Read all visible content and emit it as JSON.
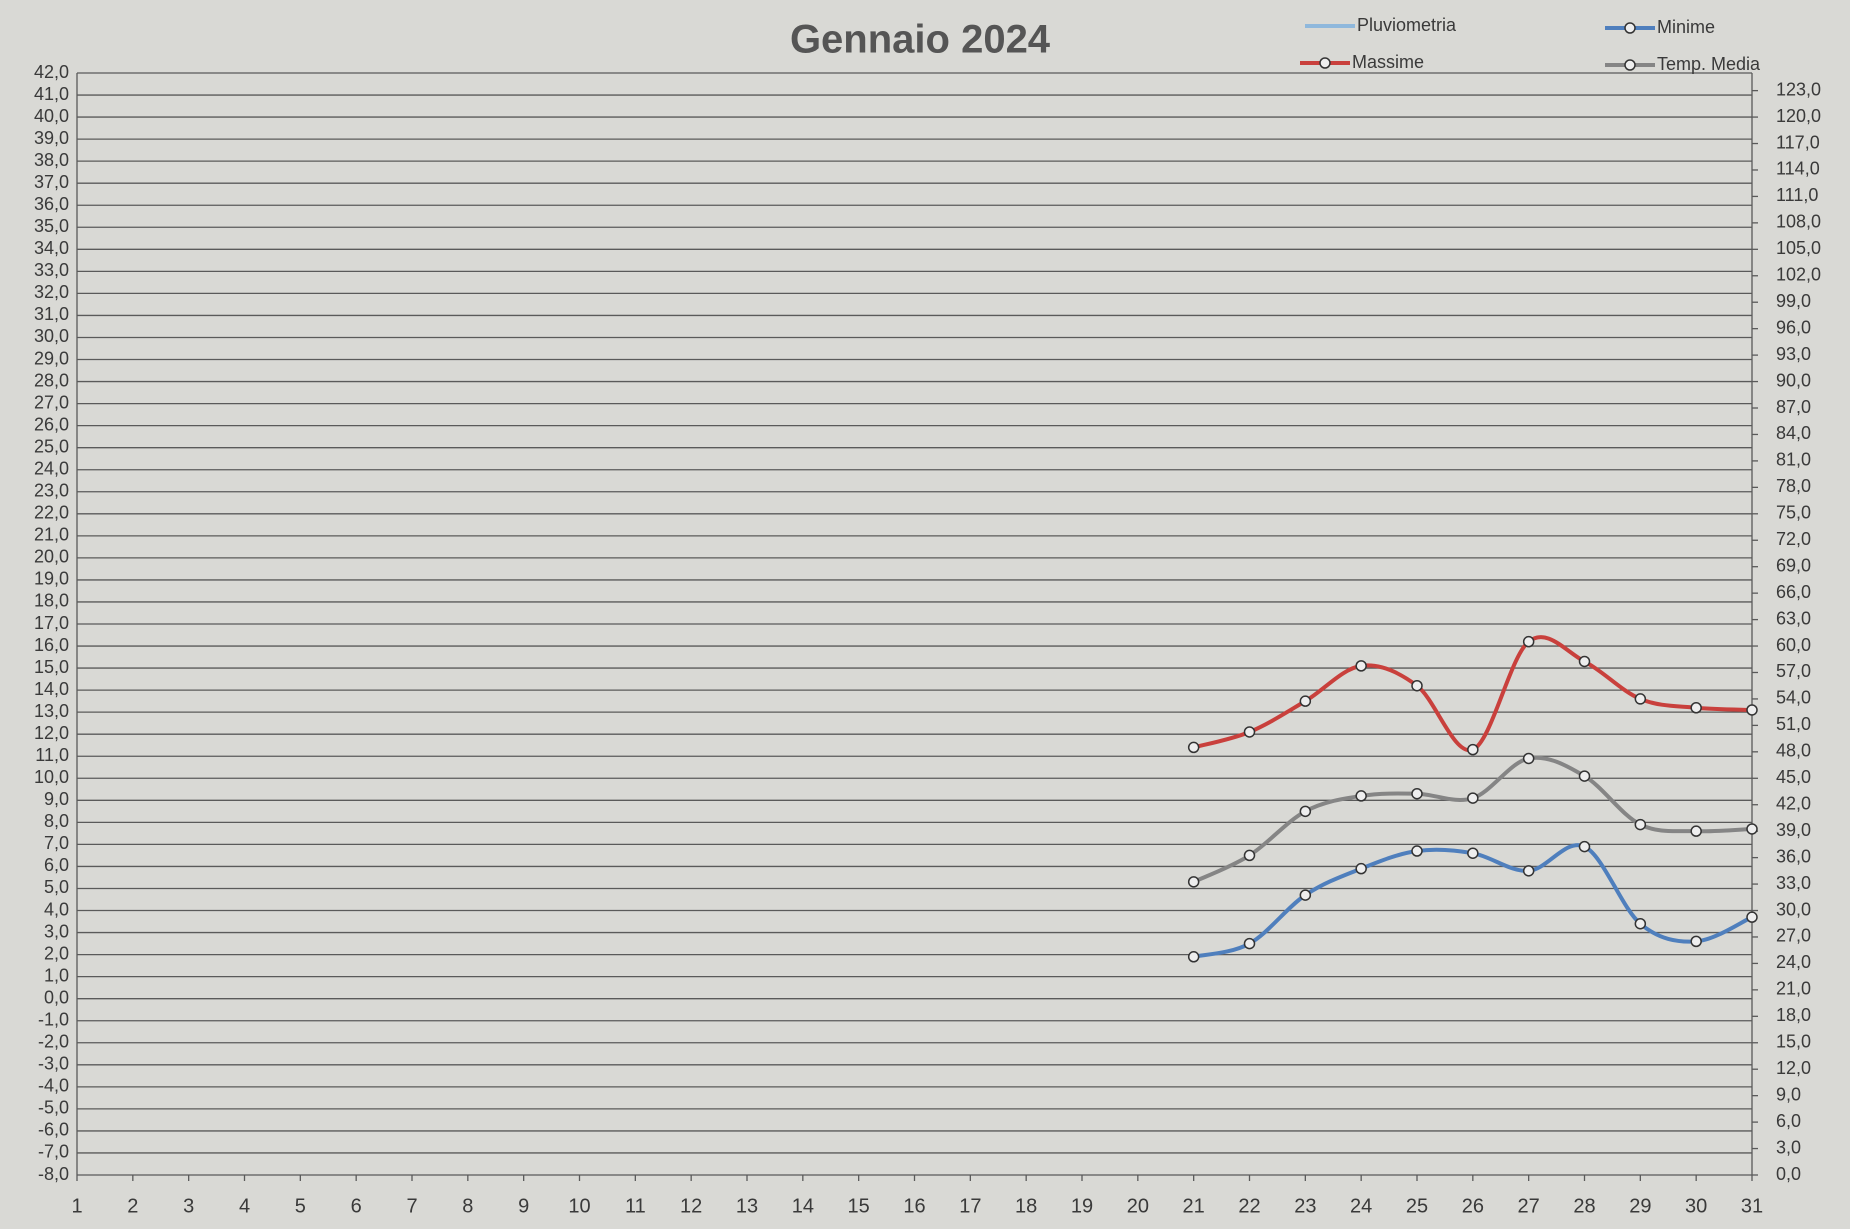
{
  "chart_data": {
    "type": "line",
    "title": "Gennaio 2024",
    "x": [
      1,
      2,
      3,
      4,
      5,
      6,
      7,
      8,
      9,
      10,
      11,
      12,
      13,
      14,
      15,
      16,
      17,
      18,
      19,
      20,
      21,
      22,
      23,
      24,
      25,
      26,
      27,
      28,
      29,
      30,
      31
    ],
    "xlim": [
      1,
      31
    ],
    "ylim": [
      -8,
      42
    ],
    "yticks": [
      {
        "value": -8,
        "label": "-8,0"
      },
      {
        "value": -7,
        "label": "-7,0"
      },
      {
        "value": -6,
        "label": "-6,0"
      },
      {
        "value": -5,
        "label": "-5,0"
      },
      {
        "value": -4,
        "label": "-4,0"
      },
      {
        "value": -3,
        "label": "-3,0"
      },
      {
        "value": -2,
        "label": "-2,0"
      },
      {
        "value": -1,
        "label": "-1,0"
      },
      {
        "value": 0,
        "label": "0,0"
      },
      {
        "value": 1,
        "label": "1,0"
      },
      {
        "value": 2,
        "label": "2,0"
      },
      {
        "value": 3,
        "label": "3,0"
      },
      {
        "value": 4,
        "label": "4,0"
      },
      {
        "value": 5,
        "label": "5,0"
      },
      {
        "value": 6,
        "label": "6,0"
      },
      {
        "value": 7,
        "label": "7,0"
      },
      {
        "value": 8,
        "label": "8,0"
      },
      {
        "value": 9,
        "label": "9,0"
      },
      {
        "value": 10,
        "label": "10,0"
      },
      {
        "value": 11,
        "label": "11,0"
      },
      {
        "value": 12,
        "label": "12,0"
      },
      {
        "value": 13,
        "label": "13,0"
      },
      {
        "value": 14,
        "label": "14,0"
      },
      {
        "value": 15,
        "label": "15,0"
      },
      {
        "value": 16,
        "label": "16,0"
      },
      {
        "value": 17,
        "label": "17,0"
      },
      {
        "value": 18,
        "label": "18,0"
      },
      {
        "value": 19,
        "label": "19,0"
      },
      {
        "value": 20,
        "label": "20,0"
      },
      {
        "value": 21,
        "label": "21,0"
      },
      {
        "value": 22,
        "label": "22,0"
      },
      {
        "value": 23,
        "label": "23,0"
      },
      {
        "value": 24,
        "label": "24,0"
      },
      {
        "value": 25,
        "label": "25,0"
      },
      {
        "value": 26,
        "label": "26,0"
      },
      {
        "value": 27,
        "label": "27,0"
      },
      {
        "value": 28,
        "label": "28,0"
      },
      {
        "value": 29,
        "label": "29,0"
      },
      {
        "value": 30,
        "label": "30,0"
      },
      {
        "value": 31,
        "label": "31,0"
      },
      {
        "value": 32,
        "label": "32,0"
      },
      {
        "value": 33,
        "label": "33,0"
      },
      {
        "value": 34,
        "label": "34,0"
      },
      {
        "value": 35,
        "label": "35,0"
      },
      {
        "value": 36,
        "label": "36,0"
      },
      {
        "value": 37,
        "label": "37,0"
      },
      {
        "value": 38,
        "label": "38,0"
      },
      {
        "value": 39,
        "label": "39,0"
      },
      {
        "value": 40,
        "label": "40,0"
      },
      {
        "value": 41,
        "label": "41,0"
      },
      {
        "value": 42,
        "label": "42,0"
      }
    ],
    "y2lim": [
      0,
      125
    ],
    "y2ticks": [
      {
        "value": 0,
        "label": "0,0"
      },
      {
        "value": 3,
        "label": "3,0"
      },
      {
        "value": 6,
        "label": "6,0"
      },
      {
        "value": 9,
        "label": "9,0"
      },
      {
        "value": 12,
        "label": "12,0"
      },
      {
        "value": 15,
        "label": "15,0"
      },
      {
        "value": 18,
        "label": "18,0"
      },
      {
        "value": 21,
        "label": "21,0"
      },
      {
        "value": 24,
        "label": "24,0"
      },
      {
        "value": 27,
        "label": "27,0"
      },
      {
        "value": 30,
        "label": "30,0"
      },
      {
        "value": 33,
        "label": "33,0"
      },
      {
        "value": 36,
        "label": "36,0"
      },
      {
        "value": 39,
        "label": "39,0"
      },
      {
        "value": 42,
        "label": "42,0"
      },
      {
        "value": 45,
        "label": "45,0"
      },
      {
        "value": 48,
        "label": "48,0"
      },
      {
        "value": 51,
        "label": "51,0"
      },
      {
        "value": 54,
        "label": "54,0"
      },
      {
        "value": 57,
        "label": "57,0"
      },
      {
        "value": 60,
        "label": "60,0"
      },
      {
        "value": 63,
        "label": "63,0"
      },
      {
        "value": 66,
        "label": "66,0"
      },
      {
        "value": 69,
        "label": "69,0"
      },
      {
        "value": 72,
        "label": "72,0"
      },
      {
        "value": 75,
        "label": "75,0"
      },
      {
        "value": 78,
        "label": "78,0"
      },
      {
        "value": 81,
        "label": "81,0"
      },
      {
        "value": 84,
        "label": "84,0"
      },
      {
        "value": 87,
        "label": "87,0"
      },
      {
        "value": 90,
        "label": "90,0"
      },
      {
        "value": 93,
        "label": "93,0"
      },
      {
        "value": 96,
        "label": "96,0"
      },
      {
        "value": 99,
        "label": "99,0"
      },
      {
        "value": 102,
        "label": "102,0"
      },
      {
        "value": 105,
        "label": "105,0"
      },
      {
        "value": 108,
        "label": "108,0"
      },
      {
        "value": 111,
        "label": "111,0"
      },
      {
        "value": 114,
        "label": "114,0"
      },
      {
        "value": 117,
        "label": "117,0"
      },
      {
        "value": 120,
        "label": "120,0"
      },
      {
        "value": 123,
        "label": "123,0"
      }
    ],
    "grid": true,
    "series": [
      {
        "name": "Pluviometria",
        "color": "#8fb8dc",
        "axis": "y2",
        "markers": false,
        "values": [
          null,
          null,
          null,
          null,
          null,
          null,
          null,
          null,
          null,
          null,
          null,
          null,
          null,
          null,
          null,
          null,
          null,
          null,
          null,
          null,
          null,
          null,
          null,
          null,
          null,
          null,
          null,
          null,
          null,
          null,
          null
        ]
      },
      {
        "name": "Minime",
        "color": "#4f7fbd",
        "markers": true,
        "values": [
          null,
          null,
          null,
          null,
          null,
          null,
          null,
          null,
          null,
          null,
          null,
          null,
          null,
          null,
          null,
          null,
          null,
          null,
          null,
          null,
          1.9,
          2.5,
          4.7,
          5.9,
          6.7,
          6.6,
          5.8,
          6.9,
          3.4,
          2.6,
          3.7
        ]
      },
      {
        "name": "Massime",
        "color": "#c9403c",
        "markers": true,
        "values": [
          null,
          null,
          null,
          null,
          null,
          null,
          null,
          null,
          null,
          null,
          null,
          null,
          null,
          null,
          null,
          null,
          null,
          null,
          null,
          null,
          11.4,
          12.1,
          13.5,
          15.1,
          14.2,
          11.3,
          16.2,
          15.3,
          13.6,
          13.2,
          13.1
        ]
      },
      {
        "name": "Temp. Media",
        "color": "#858585",
        "markers": true,
        "values": [
          null,
          null,
          null,
          null,
          null,
          null,
          null,
          null,
          null,
          null,
          null,
          null,
          null,
          null,
          null,
          null,
          null,
          null,
          null,
          null,
          5.3,
          6.5,
          8.5,
          9.2,
          9.3,
          9.1,
          10.9,
          10.1,
          7.9,
          7.6,
          7.7
        ]
      }
    ]
  }
}
